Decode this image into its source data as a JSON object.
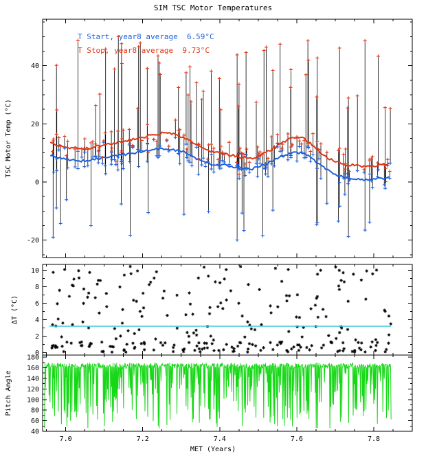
{
  "title": "SIM TSC Motor Temperatures",
  "x_axis": {
    "label": "MET (Years)",
    "lim": [
      6.94,
      7.9
    ],
    "ticks": [
      7.0,
      7.2,
      7.4,
      7.6,
      7.8
    ],
    "minor_step": 0.05
  },
  "colors": {
    "start_blue": "#1c5fe0",
    "stop_red": "#e03614",
    "delta_ref_cyan": "#3cc8dc",
    "pitch_green": "#16d816",
    "axis_black": "#000000",
    "background_white": "#ffffff"
  },
  "legend": {
    "start_label": "T Start, year8 average  6.59°C",
    "stop_label": "T Stop, year8 average  9.73°C"
  },
  "chart_data": [
    {
      "id": "tsc_motor_temp",
      "type": "scatter",
      "ylabel": "TSC Motor Temp (°C)",
      "ylim": [
        -26,
        56
      ],
      "yticks": [
        -20,
        0,
        20,
        40
      ],
      "yminor_step": 5,
      "start_avg_c": 6.59,
      "stop_avg_c": 9.73,
      "start_avg_curve": {
        "x_start": 6.96,
        "x_step": 0.02,
        "y": [
          9.0,
          8.5,
          7.6,
          7.8,
          7.2,
          7.5,
          8.0,
          8.3,
          8.8,
          9.4,
          9.6,
          10.0,
          10.5,
          11.0,
          11.4,
          11.6,
          11.2,
          10.6,
          9.4,
          8.0,
          6.8,
          6.2,
          5.8,
          5.6,
          5.2,
          4.6,
          4.4,
          5.0,
          6.2,
          7.4,
          8.6,
          9.6,
          10.2,
          9.8,
          8.2,
          6.0,
          4.0,
          2.6,
          1.8,
          1.2,
          0.8,
          0.6,
          0.8,
          1.2,
          1.6
        ]
      },
      "stop_avg_curve": {
        "x_start": 6.96,
        "x_step": 0.02,
        "y": [
          13.5,
          12.8,
          11.6,
          11.8,
          11.2,
          11.6,
          12.2,
          12.6,
          13.2,
          13.8,
          14.2,
          14.8,
          15.4,
          16.0,
          16.6,
          16.8,
          16.4,
          15.6,
          14.2,
          12.6,
          11.2,
          10.4,
          9.8,
          9.4,
          9.0,
          8.4,
          8.2,
          8.8,
          10.0,
          11.6,
          13.2,
          14.6,
          15.4,
          14.8,
          12.8,
          10.4,
          8.4,
          7.0,
          6.2,
          5.8,
          5.6,
          5.4,
          5.6,
          6.0,
          6.4
        ]
      },
      "events": {
        "seed": 11,
        "count": 170,
        "x_range": [
          6.958,
          7.845
        ],
        "noise_sd": 2.6,
        "high_outlier_p": 0.22,
        "high_range": [
          24,
          50
        ],
        "low_outlier_p": 0.13,
        "low_range": [
          -20,
          -6
        ]
      }
    },
    {
      "id": "delta_t",
      "type": "scatter",
      "ylabel": "ΔT (°C)",
      "ylim": [
        -0.3,
        10.7
      ],
      "yticks": [
        0,
        2,
        4,
        6,
        8,
        10
      ],
      "yminor_step": 1,
      "ref_line_y": 3.2,
      "points": {
        "seed": 23,
        "count": 270,
        "x_range": [
          6.958,
          7.845
        ],
        "low_band_p": 0.45,
        "low_band": [
          0.05,
          1.3
        ],
        "spread_range": [
          1.5,
          10.5
        ]
      }
    },
    {
      "id": "pitch_angle",
      "type": "line",
      "ylabel": "Pitch Angle",
      "ylim": [
        40,
        184
      ],
      "yticks": [
        40,
        60,
        80,
        100,
        120,
        140,
        160,
        180
      ],
      "yminor_step": 10,
      "trace": {
        "seed": 37,
        "count": 760,
        "x_range": [
          6.945,
          7.845
        ],
        "top_base": 164,
        "top_jitter": 10,
        "dip_p": 0.4,
        "dip_range": [
          45,
          150
        ]
      }
    }
  ]
}
